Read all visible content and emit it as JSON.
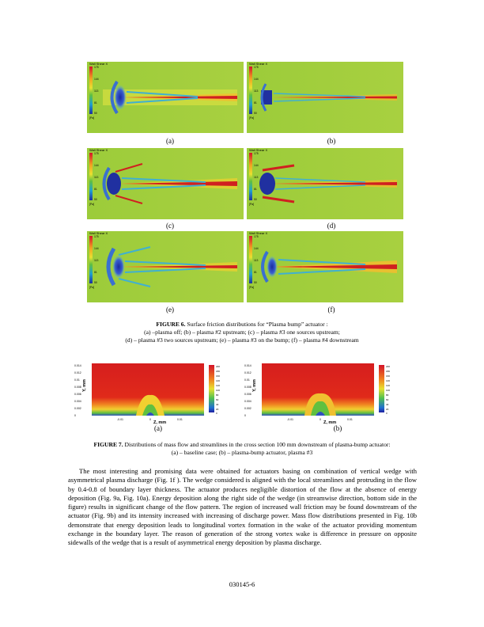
{
  "figure6": {
    "panels": [
      {
        "label": "(a)",
        "legend_title": "Wall Shear X",
        "ticks": [
          "175",
          "144",
          "113",
          "81",
          "50",
          "[Pa]"
        ]
      },
      {
        "label": "(b)",
        "legend_title": "Wall Shear X",
        "ticks": [
          "175",
          "144",
          "113",
          "81",
          "50",
          "[Pa]"
        ]
      },
      {
        "label": "(c)",
        "legend_title": "Wall Shear X",
        "ticks": [
          "175",
          "144",
          "113",
          "81",
          "50",
          "[Pa]"
        ]
      },
      {
        "label": "(d)",
        "legend_title": "Wall Shear X",
        "ticks": [
          "175",
          "144",
          "113",
          "81",
          "50",
          "[Pa]"
        ]
      },
      {
        "label": "(e)",
        "legend_title": "Wall Shear X",
        "ticks": [
          "175",
          "144",
          "113",
          "81",
          "50",
          "[Pa]"
        ]
      },
      {
        "label": "(f)",
        "legend_title": "Wall Shear X",
        "ticks": [
          "175",
          "144",
          "113",
          "81",
          "50",
          "[Pa]"
        ]
      }
    ],
    "caption_bold": "FIGURE 6.",
    "caption_line1": " Surface friction distributions for “Plasma bump” actuator :",
    "caption_line2": "(a) –plasma off; (b) – plasma #2 upstream; (c) – plasma #3 one sources upstream;",
    "caption_line3": "(d) – plasma #3 two sources upstream; (e) – plasma #3 on the bump; (f) – plasma #4 downstream"
  },
  "figure7": {
    "panels": [
      {
        "label": "(a)",
        "y_axis": "Y, mm",
        "x_axis": "Z, mm",
        "y_ticks": [
          "0.014",
          "0.012",
          "0.01",
          "0.008",
          "0.006",
          "0.004",
          "0.002",
          "0"
        ],
        "x_ticks": [
          "-0.01",
          "0",
          "0.01"
        ],
        "legend": [
          "220",
          "180",
          "160",
          "140",
          "120",
          "100",
          "80",
          "60",
          "40",
          "20",
          "0"
        ]
      },
      {
        "label": "(b)",
        "y_axis": "Y, mm",
        "x_axis": "Z, mm",
        "y_ticks": [
          "0.014",
          "0.012",
          "0.01",
          "0.008",
          "0.006",
          "0.004",
          "0.002",
          "0"
        ],
        "x_ticks": [
          "-0.01",
          "0",
          "0.01"
        ],
        "legend": [
          "220",
          "180",
          "160",
          "140",
          "120",
          "100",
          "80",
          "60",
          "40",
          "20",
          "0"
        ]
      }
    ],
    "caption_bold": "FIGURE 7.",
    "caption_line1": " Distributions of mass flow and streamlines in the cross section 100 mm downstream of plasma-bump actuator:",
    "caption_line2": "(a) – baseline case; (b) – plasma-bump actuator, plasma #3"
  },
  "body_paragraph": "The most interesting and promising data were obtained for actuators basing on combination of vertical wedge with asymmetrical plasma discharge (Fig. 1f ). The wedge considered is aligned with the local streamlines and protruding in the flow by 0.4-0.8 of boundary layer thickness. The actuator produces negligible distortion of the flow at the absence of energy deposition (Fig. 9a, Fig. 10a). Energy deposition along the right side of the wedge (in streamwise direction, bottom side in the figure) results in significant change of the flow pattern. The region of increased wall friction may be found downstream of the actuator (Fig. 9b) and its intensity increased with increasing of discharge power. Mass flow distributions presented in Fig. 10b demonstrate that energy deposition leads to longitudinal vortex formation in the wake of the actuator providing momentum exchange in the boundary layer. The reason of generation of the strong vortex wake is difference in pressure on opposite sidewalls of the wedge that is a result of asymmetrical energy deposition by plasma discharge.",
  "page_number": "030145-6"
}
